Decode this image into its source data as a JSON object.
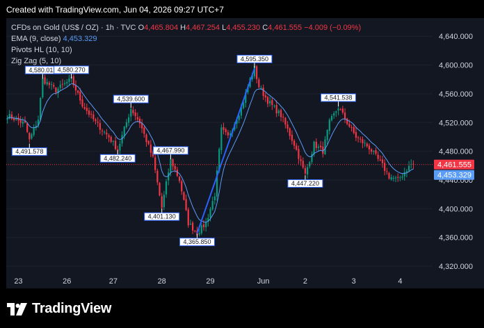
{
  "header": {
    "created": "Created with TradingView.com, Jun 04, 2026 09:27 UTC+7"
  },
  "legend": {
    "symbol": "CFDs on Gold (US$ / OZ) · 1h · TVC",
    "o_label": "O",
    "o_val": "4,465.804",
    "h_label": "H",
    "h_val": "4,467.254",
    "l_label": "L",
    "l_val": "4,455.230",
    "c_label": "C",
    "c_val": "4,461.555",
    "change": "−4.009 (−0.09%)",
    "ema_label": "EMA (9, close)",
    "ema_val": "4,453.329",
    "pivots_label": "Pivots HL (10, 10)",
    "zigzag_label": "Zig Zag (5, 10)"
  },
  "logo": {
    "text": "TradingView"
  },
  "colors": {
    "background": "#131722",
    "up": "#089981",
    "down": "#f23645",
    "ema": "#5b9cf6",
    "zigzag": "#2962ff",
    "last_price": "#f23645",
    "ema_badge": "#5b9cf6"
  },
  "chart_data": {
    "type": "candlestick",
    "title": "CFDs on Gold (US$ / OZ) · 1h · TVC",
    "ylim": [
      4300,
      4650
    ],
    "y_ticks": [
      4320,
      4360,
      4400,
      4440,
      4480,
      4520,
      4560,
      4600,
      4640
    ],
    "y_tick_labels": [
      "4,320.000",
      "4,360.000",
      "4,400.000",
      "4,440.000",
      "4,480.000",
      "4,520.000",
      "4,560.000",
      "4,600.000",
      "4,640.000"
    ],
    "x_ticks": [
      {
        "label": "23",
        "bar": 5
      },
      {
        "label": "26",
        "bar": 27
      },
      {
        "label": "27",
        "bar": 48
      },
      {
        "label": "28",
        "bar": 70
      },
      {
        "label": "29",
        "bar": 92
      },
      {
        "label": "Jun",
        "bar": 116
      },
      {
        "label": "2",
        "bar": 135
      },
      {
        "label": "3",
        "bar": 157
      },
      {
        "label": "4",
        "bar": 178
      }
    ],
    "bar_count": 185,
    "price_path": [
      [
        0,
        4530
      ],
      [
        8,
        4518
      ],
      [
        10,
        4495
      ],
      [
        14,
        4525
      ],
      [
        16,
        4580
      ],
      [
        22,
        4565
      ],
      [
        29,
        4580
      ],
      [
        34,
        4545
      ],
      [
        40,
        4520
      ],
      [
        46,
        4500
      ],
      [
        50,
        4482
      ],
      [
        56,
        4539.6
      ],
      [
        60,
        4520
      ],
      [
        66,
        4470
      ],
      [
        70,
        4401.13
      ],
      [
        74,
        4467.99
      ],
      [
        78,
        4440
      ],
      [
        82,
        4380
      ],
      [
        86,
        4365.85
      ],
      [
        90,
        4380
      ],
      [
        94,
        4420
      ],
      [
        97,
        4510
      ],
      [
        100,
        4500
      ],
      [
        106,
        4540
      ],
      [
        110,
        4580
      ],
      [
        112,
        4595.35
      ],
      [
        114,
        4570
      ],
      [
        118,
        4550
      ],
      [
        124,
        4530
      ],
      [
        130,
        4490
      ],
      [
        135,
        4447.22
      ],
      [
        139,
        4490
      ],
      [
        143,
        4480
      ],
      [
        146,
        4520
      ],
      [
        150,
        4541.538
      ],
      [
        154,
        4520
      ],
      [
        158,
        4500
      ],
      [
        164,
        4485
      ],
      [
        170,
        4460
      ],
      [
        173,
        4445
      ],
      [
        177,
        4440
      ],
      [
        181,
        4455
      ],
      [
        183,
        4462
      ]
    ],
    "zigzag": [
      {
        "bar": 10,
        "price": 4491.578,
        "label": "4,491.578"
      },
      {
        "bar": 16,
        "price": 4580.013,
        "label": "4,580.013"
      },
      {
        "bar": 29,
        "price": 4580.27,
        "label": "4,580.270"
      },
      {
        "bar": 50,
        "price": 4482.24,
        "label": "4,482.240"
      },
      {
        "bar": 56,
        "price": 4539.6,
        "label": "4,539.600"
      },
      {
        "bar": 70,
        "price": 4401.13,
        "label": "4,401.130"
      },
      {
        "bar": 74,
        "price": 4467.99,
        "label": "4,467.990"
      },
      {
        "bar": 86,
        "price": 4365.85,
        "label": "4,365.850"
      },
      {
        "bar": 112,
        "price": 4595.35,
        "label": "4,595.350"
      },
      {
        "bar": 135,
        "price": 4447.22,
        "label": "4,447.220"
      },
      {
        "bar": 150,
        "price": 4541.538,
        "label": "4,541.538"
      }
    ],
    "zigzag_line": [
      {
        "bar": 86,
        "price": 4365.85
      },
      {
        "bar": 112,
        "price": 4595.35
      }
    ],
    "last_price": {
      "value": 4461.555,
      "label": "4,461.555"
    },
    "ema_last": {
      "value": 4453.329,
      "label": "4,453.329"
    }
  }
}
